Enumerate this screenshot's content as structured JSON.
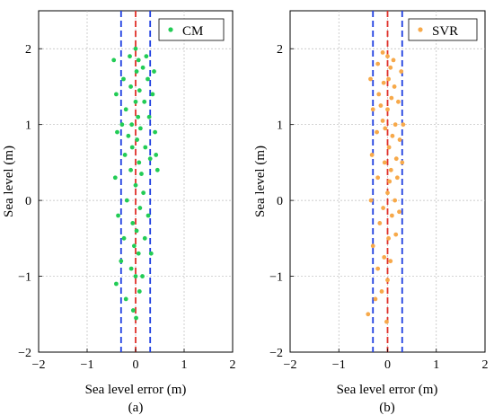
{
  "chart_data": [
    {
      "type": "scatter",
      "panel_label": "(a)",
      "xlabel": "Sea level error (m)",
      "ylabel": "Sea level (m)",
      "xlim": [
        -2,
        2
      ],
      "ylim": [
        -2,
        2.5
      ],
      "xticks": [
        "-2",
        "-1",
        "0",
        "1",
        "2"
      ],
      "yticks": [
        "-2",
        "-1",
        "0",
        "1",
        "2"
      ],
      "grid": true,
      "legend_position": "top-right",
      "reference_lines": [
        {
          "x": -0.3,
          "style": "dashed",
          "color": "#1f3fe0"
        },
        {
          "x": 0,
          "style": "dashed",
          "color": "#e0302a"
        },
        {
          "x": 0.3,
          "style": "dashed",
          "color": "#1f3fe0"
        }
      ],
      "series": [
        {
          "name": "CM",
          "color": "#22cc55",
          "points": [
            [
              -0.45,
              1.85
            ],
            [
              -0.4,
              1.4
            ],
            [
              -0.38,
              0.9
            ],
            [
              -0.42,
              0.3
            ],
            [
              -0.36,
              -0.2
            ],
            [
              -0.4,
              -1.1
            ],
            [
              -0.3,
              -0.8
            ],
            [
              -0.25,
              1.6
            ],
            [
              -0.2,
              1.2
            ],
            [
              -0.22,
              0.6
            ],
            [
              -0.18,
              0.0
            ],
            [
              -0.24,
              -0.5
            ],
            [
              -0.2,
              -1.3
            ],
            [
              -0.12,
              1.9
            ],
            [
              -0.1,
              1.5
            ],
            [
              -0.08,
              1.0
            ],
            [
              -0.1,
              0.4
            ],
            [
              -0.06,
              -0.3
            ],
            [
              -0.09,
              -0.9
            ],
            [
              -0.05,
              -1.45
            ],
            [
              0.0,
              2.0
            ],
            [
              0.02,
              1.7
            ],
            [
              0.0,
              1.3
            ],
            [
              0.03,
              0.8
            ],
            [
              0.0,
              0.2
            ],
            [
              0.02,
              -0.4
            ],
            [
              0.0,
              -1.0
            ],
            [
              0.01,
              -1.55
            ],
            [
              0.06,
              1.85
            ],
            [
              0.08,
              1.45
            ],
            [
              0.1,
              0.95
            ],
            [
              0.07,
              0.5
            ],
            [
              0.09,
              -0.1
            ],
            [
              0.06,
              -0.7
            ],
            [
              0.08,
              -1.2
            ],
            [
              0.15,
              1.75
            ],
            [
              0.18,
              1.3
            ],
            [
              0.2,
              0.7
            ],
            [
              0.16,
              0.1
            ],
            [
              0.19,
              -0.5
            ],
            [
              0.14,
              -1.0
            ],
            [
              0.25,
              1.6
            ],
            [
              0.28,
              1.1
            ],
            [
              0.3,
              0.55
            ],
            [
              0.26,
              -0.2
            ],
            [
              0.32,
              -0.7
            ],
            [
              0.35,
              1.4
            ],
            [
              0.4,
              0.9
            ],
            [
              0.45,
              0.4
            ],
            [
              0.38,
              1.7
            ],
            [
              0.42,
              0.6
            ],
            [
              -0.15,
              0.85
            ],
            [
              0.12,
              0.35
            ],
            [
              -0.03,
              -0.6
            ],
            [
              0.05,
              1.1
            ],
            [
              -0.07,
              0.7
            ],
            [
              0.22,
              1.9
            ],
            [
              -0.28,
              1.0
            ]
          ]
        }
      ]
    },
    {
      "type": "scatter",
      "panel_label": "(b)",
      "xlabel": "Sea level error (m)",
      "ylabel": "Sea level (m)",
      "xlim": [
        -2,
        2
      ],
      "ylim": [
        -2,
        2.5
      ],
      "xticks": [
        "-2",
        "-1",
        "0",
        "1",
        "2"
      ],
      "yticks": [
        "-2",
        "-1",
        "0",
        "1",
        "2"
      ],
      "grid": true,
      "legend_position": "top-right",
      "reference_lines": [
        {
          "x": -0.3,
          "style": "dashed",
          "color": "#1f3fe0"
        },
        {
          "x": 0,
          "style": "dashed",
          "color": "#e0302a"
        },
        {
          "x": 0.3,
          "style": "dashed",
          "color": "#1f3fe0"
        }
      ],
      "series": [
        {
          "name": "SVR",
          "color": "#f7a94a",
          "points": [
            [
              -0.35,
              1.6
            ],
            [
              -0.3,
              1.2
            ],
            [
              -0.32,
              0.6
            ],
            [
              -0.34,
              0.0
            ],
            [
              -0.3,
              -0.6
            ],
            [
              -0.4,
              -1.5
            ],
            [
              -0.2,
              1.8
            ],
            [
              -0.18,
              1.4
            ],
            [
              -0.22,
              0.9
            ],
            [
              -0.2,
              0.3
            ],
            [
              -0.16,
              -0.3
            ],
            [
              -0.2,
              -0.9
            ],
            [
              -0.25,
              -1.3
            ],
            [
              -0.1,
              1.95
            ],
            [
              -0.08,
              1.55
            ],
            [
              -0.1,
              1.05
            ],
            [
              -0.06,
              0.5
            ],
            [
              -0.09,
              -0.1
            ],
            [
              -0.07,
              -0.75
            ],
            [
              -0.12,
              -1.2
            ],
            [
              0.0,
              1.9
            ],
            [
              0.02,
              1.6
            ],
            [
              0.0,
              1.2
            ],
            [
              0.03,
              0.7
            ],
            [
              0.0,
              0.1
            ],
            [
              0.02,
              -0.5
            ],
            [
              0.0,
              -1.05
            ],
            [
              -0.02,
              -1.6
            ],
            [
              0.06,
              1.75
            ],
            [
              0.08,
              1.35
            ],
            [
              0.1,
              0.85
            ],
            [
              0.07,
              0.4
            ],
            [
              0.09,
              -0.2
            ],
            [
              0.06,
              -0.8
            ],
            [
              0.14,
              1.5
            ],
            [
              0.16,
              1.0
            ],
            [
              0.18,
              0.55
            ],
            [
              0.15,
              0.0
            ],
            [
              0.17,
              -0.45
            ],
            [
              0.22,
              1.3
            ],
            [
              0.25,
              0.8
            ],
            [
              0.2,
              0.3
            ],
            [
              0.28,
              1.7
            ],
            [
              0.24,
              -0.15
            ],
            [
              0.32,
              1.0
            ],
            [
              0.3,
              0.5
            ],
            [
              -0.05,
              0.95
            ],
            [
              0.04,
              0.25
            ],
            [
              -0.14,
              1.25
            ],
            [
              0.12,
              1.85
            ]
          ]
        }
      ]
    }
  ]
}
